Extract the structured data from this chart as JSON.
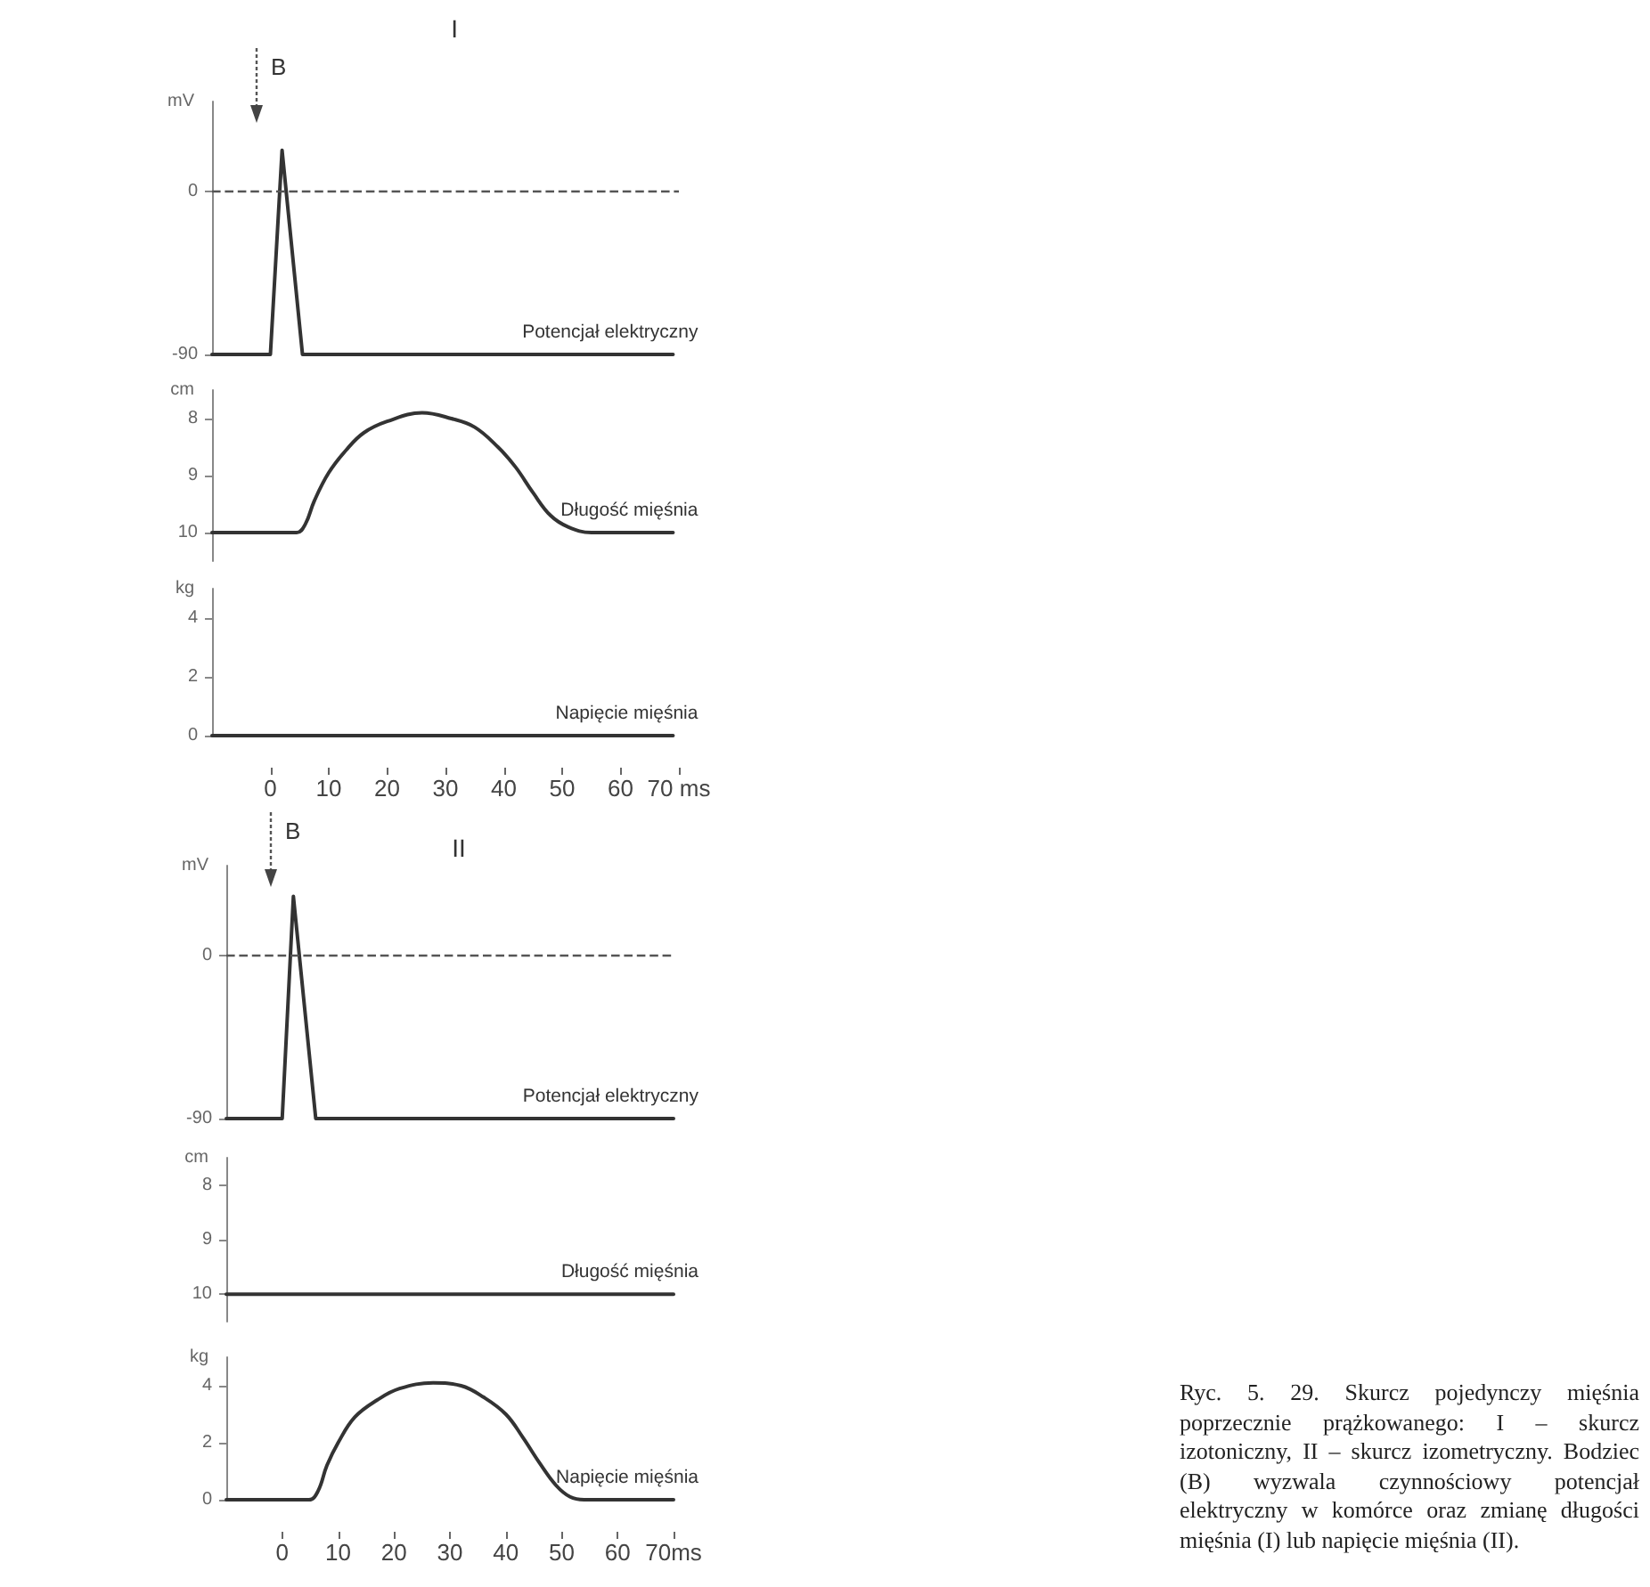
{
  "chart_data": [
    {
      "type": "line",
      "title": "I",
      "ylabel": "mV",
      "x": [
        -10,
        0,
        2,
        5.5,
        69
      ],
      "series": [
        {
          "name": "Potencjał elektryczny",
          "color": "#333333",
          "values": [
            -90,
            -90,
            23,
            -90,
            -90
          ]
        }
      ],
      "xlim": [
        -10,
        70
      ],
      "ylim": [
        -90,
        50
      ],
      "yticks": [
        -90,
        0
      ],
      "ref_lines": [
        {
          "axis": "y",
          "value": 0,
          "color": "#555555",
          "line_style": "dashed"
        }
      ],
      "annotations": [
        "B"
      ],
      "tick_labels": "y"
    },
    {
      "type": "line",
      "ylabel": "cm",
      "x": [
        -10,
        4.5,
        6,
        7.5,
        10,
        13,
        16,
        20,
        26,
        31,
        35,
        39,
        42,
        45,
        48,
        51,
        55,
        69
      ],
      "series": [
        {
          "name": "Długość mięśnia",
          "color": "#333333",
          "values": [
            10,
            10,
            9.85,
            9.45,
            8.95,
            8.55,
            8.25,
            8.05,
            7.9,
            8,
            8.15,
            8.5,
            8.85,
            9.3,
            9.7,
            9.9,
            10,
            10
          ]
        }
      ],
      "xlim": [
        -10,
        70
      ],
      "ylim": [
        10.5,
        7.5
      ],
      "yticks": [
        8,
        9,
        10
      ],
      "tick_labels": "y"
    },
    {
      "type": "line",
      "ylabel": "kg",
      "x": [
        -10,
        69
      ],
      "series": [
        {
          "name": "Napięcie mięśnia",
          "color": "#333333",
          "values": [
            0,
            0
          ]
        }
      ],
      "xlim": [
        -10,
        70
      ],
      "ylim": [
        0,
        5
      ],
      "xticks": [
        0,
        10,
        20,
        30,
        40,
        50,
        60,
        {
          "value": 70,
          "label": "70 ms"
        }
      ],
      "yticks": [
        0,
        2,
        4
      ]
    },
    {
      "type": "line",
      "title": "II",
      "ylabel": "mV",
      "x": [
        -10,
        0,
        2,
        6,
        70
      ],
      "series": [
        {
          "name": "Potencjał elektryczny",
          "color": "#333333",
          "values": [
            -90,
            -90,
            33,
            -90,
            -90
          ]
        }
      ],
      "xlim": [
        -10,
        70
      ],
      "ylim": [
        -90,
        50
      ],
      "yticks": [
        -90,
        0
      ],
      "ref_lines": [
        {
          "axis": "y",
          "value": 0,
          "color": "#555555",
          "line_style": "dashed"
        }
      ],
      "annotations": [
        "B"
      ],
      "tick_labels": "y"
    },
    {
      "type": "line",
      "ylabel": "cm",
      "x": [
        -10,
        70
      ],
      "series": [
        {
          "name": "Długość mięśnia",
          "color": "#333333",
          "values": [
            10,
            10
          ]
        }
      ],
      "xlim": [
        -10,
        70
      ],
      "ylim": [
        10.5,
        7.5
      ],
      "yticks": [
        8,
        9,
        10
      ],
      "tick_labels": "y"
    },
    {
      "type": "line",
      "ylabel": "kg",
      "x": [
        -10,
        4.8,
        6.4,
        8,
        10,
        13,
        17,
        21,
        27,
        32,
        36,
        40,
        43,
        46,
        49,
        51.5,
        54,
        70
      ],
      "series": [
        {
          "name": "Napięcie mięśnia",
          "color": "#333333",
          "values": [
            0,
            0,
            0.3,
            1.2,
            2,
            2.9,
            3.5,
            3.9,
            4.1,
            4,
            3.6,
            3,
            2.2,
            1.3,
            0.5,
            0.1,
            0,
            0
          ]
        }
      ],
      "xlim": [
        -10,
        70
      ],
      "ylim": [
        0,
        5
      ],
      "xticks": [
        0,
        10,
        20,
        30,
        40,
        50,
        60,
        {
          "value": 70,
          "label": "70ms"
        }
      ],
      "yticks": [
        0,
        2,
        4
      ],
      "annotations": [
        "Ryc. 5. 29. Skurcz pojedynczy mięśnia poprzecznie prążkowanego: I – skurcz izotoniczny, II – skurcz izometryczny. Bodziec (B) wyzwala czynnościowy potencjał elektryczny w komórce oraz zmianę długości mięśnia (I) lub napięcie mięśnia (II)."
      ]
    }
  ]
}
